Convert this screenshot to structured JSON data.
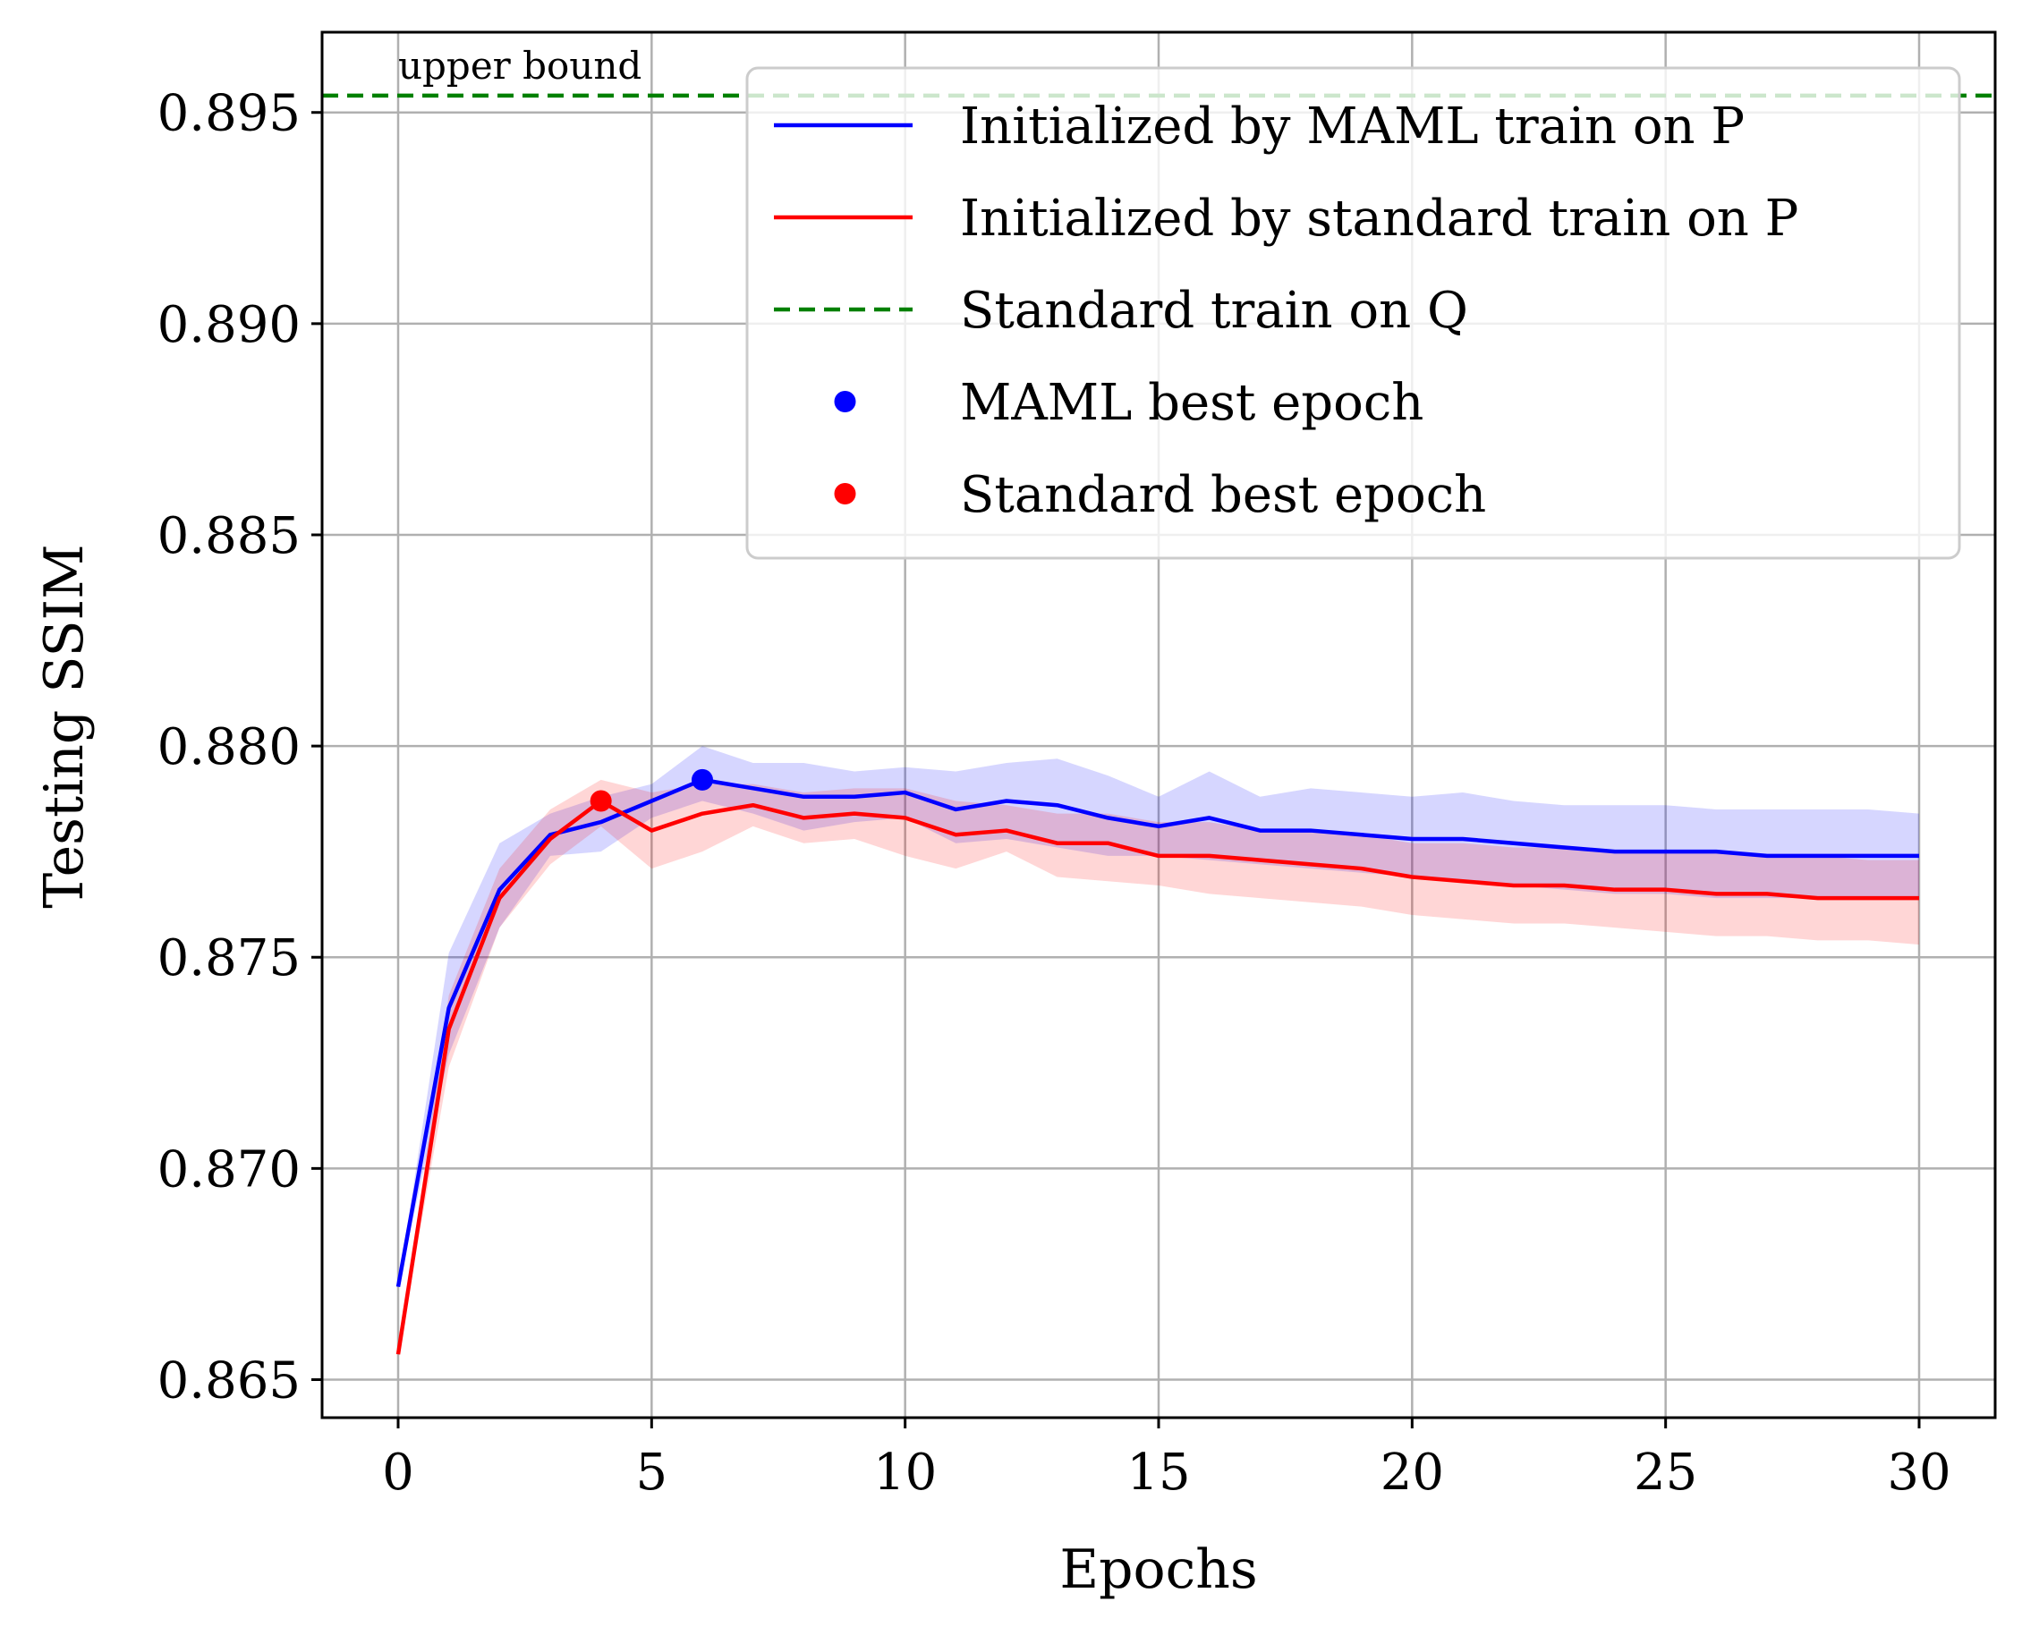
{
  "chart_data": {
    "type": "line",
    "title": "",
    "xlabel": "Epochs",
    "ylabel": "Testing SSIM",
    "xlim": [
      -1.5,
      31.5
    ],
    "ylim": [
      0.8641,
      0.8969
    ],
    "xticks": [
      0,
      5,
      10,
      15,
      20,
      25,
      30
    ],
    "xtick_labels": [
      "0",
      "5",
      "10",
      "15",
      "20",
      "25",
      "30"
    ],
    "yticks": [
      0.865,
      0.87,
      0.875,
      0.88,
      0.885,
      0.89,
      0.895
    ],
    "ytick_labels": [
      "0.865",
      "0.870",
      "0.875",
      "0.880",
      "0.885",
      "0.890",
      "0.895"
    ],
    "grid": true,
    "legend_placement": "top-right",
    "x": [
      0,
      1,
      2,
      3,
      4,
      5,
      6,
      7,
      8,
      9,
      10,
      11,
      12,
      13,
      14,
      15,
      16,
      17,
      18,
      19,
      20,
      21,
      22,
      23,
      24,
      25,
      26,
      27,
      28,
      29,
      30
    ],
    "series": [
      {
        "name": "Initialized by MAML train on P",
        "color": "#0000ff",
        "style": "solid",
        "values": [
          0.8672,
          0.8738,
          0.8766,
          0.8779,
          0.8782,
          0.8787,
          0.8792,
          0.879,
          0.8788,
          0.8788,
          0.8789,
          0.8785,
          0.8787,
          0.8786,
          0.8783,
          0.8781,
          0.8783,
          0.878,
          0.878,
          0.8779,
          0.8778,
          0.8778,
          0.8777,
          0.8776,
          0.8775,
          0.8775,
          0.8775,
          0.8774,
          0.8774,
          0.8774,
          0.8774
        ],
        "band_upper": [
          0.8672,
          0.8751,
          0.8777,
          0.8784,
          0.8788,
          0.8791,
          0.88,
          0.8796,
          0.8796,
          0.8794,
          0.8795,
          0.8794,
          0.8796,
          0.8797,
          0.8793,
          0.8788,
          0.8794,
          0.8788,
          0.879,
          0.8789,
          0.8788,
          0.8789,
          0.8787,
          0.8786,
          0.8786,
          0.8786,
          0.8785,
          0.8785,
          0.8785,
          0.8785,
          0.8784
        ],
        "band_lower": [
          0.8672,
          0.8727,
          0.8757,
          0.8774,
          0.8775,
          0.8783,
          0.8787,
          0.8784,
          0.878,
          0.8782,
          0.8783,
          0.8777,
          0.8778,
          0.8776,
          0.8774,
          0.8774,
          0.8773,
          0.8772,
          0.8771,
          0.877,
          0.8769,
          0.8768,
          0.8767,
          0.8766,
          0.8765,
          0.8765,
          0.8764,
          0.8764,
          0.8764,
          0.8764,
          0.8764
        ]
      },
      {
        "name": "Initialized by standard train on P",
        "color": "#ff0000",
        "style": "solid",
        "values": [
          0.8656,
          0.8733,
          0.8764,
          0.8778,
          0.8787,
          0.878,
          0.8784,
          0.8786,
          0.8783,
          0.8784,
          0.8783,
          0.8779,
          0.878,
          0.8777,
          0.8777,
          0.8774,
          0.8774,
          0.8773,
          0.8772,
          0.8771,
          0.8769,
          0.8768,
          0.8767,
          0.8767,
          0.8766,
          0.8766,
          0.8765,
          0.8765,
          0.8764,
          0.8764,
          0.8764
        ],
        "band_upper": [
          0.8656,
          0.8741,
          0.8771,
          0.8785,
          0.8792,
          0.8789,
          0.8791,
          0.8791,
          0.8789,
          0.879,
          0.879,
          0.8787,
          0.8786,
          0.8784,
          0.8784,
          0.8782,
          0.8782,
          0.878,
          0.878,
          0.8779,
          0.8777,
          0.8777,
          0.8776,
          0.8776,
          0.8775,
          0.8775,
          0.8775,
          0.8774,
          0.8774,
          0.8773,
          0.8773
        ],
        "band_lower": [
          0.8656,
          0.8724,
          0.8757,
          0.8772,
          0.8781,
          0.8771,
          0.8775,
          0.8781,
          0.8777,
          0.8778,
          0.8774,
          0.8771,
          0.8775,
          0.8769,
          0.8768,
          0.8767,
          0.8765,
          0.8764,
          0.8763,
          0.8762,
          0.876,
          0.8759,
          0.8758,
          0.8758,
          0.8757,
          0.8756,
          0.8755,
          0.8755,
          0.8754,
          0.8754,
          0.8753
        ]
      }
    ],
    "reference_line": {
      "name": "Standard train on Q",
      "color": "#008000",
      "style": "dashed",
      "y": 0.8954,
      "annotation": "upper bound"
    },
    "markers": [
      {
        "name": "MAML best epoch",
        "color": "#0000ff",
        "x": 6,
        "y": 0.8792
      },
      {
        "name": "Standard best epoch",
        "color": "#ff0000",
        "x": 4,
        "y": 0.8787
      }
    ],
    "legend": [
      {
        "label": "Initialized by MAML train on P",
        "kind": "line",
        "color": "#0000ff"
      },
      {
        "label": "Initialized by standard train on P",
        "kind": "line",
        "color": "#ff0000"
      },
      {
        "label": "Standard train on Q",
        "kind": "dashed",
        "color": "#008000"
      },
      {
        "label": "MAML best epoch",
        "kind": "dot",
        "color": "#0000ff"
      },
      {
        "label": "Standard best epoch",
        "kind": "dot",
        "color": "#ff0000"
      }
    ]
  }
}
